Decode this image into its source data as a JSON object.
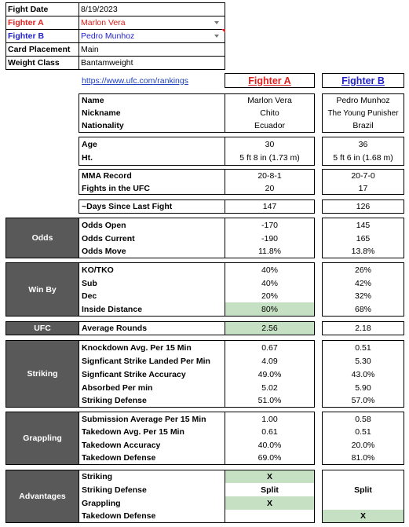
{
  "info": {
    "rows": [
      {
        "label": "Fight Date",
        "value": "8/19/2023",
        "style": ""
      },
      {
        "label": "Fighter A",
        "value": "Marlon Vera",
        "style": "red"
      },
      {
        "label": "Fighter B",
        "value": "Pedro Munhoz",
        "style": "blue"
      },
      {
        "label": "Card Placement",
        "value": "Main",
        "style": ""
      },
      {
        "label": "Weight Class",
        "value": "Bantamweight",
        "style": ""
      }
    ]
  },
  "link_text": "https://www.ufc.com/rankings",
  "headers": {
    "fighter_a": "Fighter A",
    "fighter_b": "Fighter B"
  },
  "profile": {
    "name_label": "Name",
    "name_a": "Marlon Vera",
    "name_b": "Pedro Munhoz",
    "nickname_label": "Nickname",
    "nickname_a": "Chito",
    "nickname_b": "The Young Punisher",
    "nationality_label": "Nationality",
    "nationality_a": "Ecuador",
    "nationality_b": "Brazil"
  },
  "body": {
    "age_label": "Age",
    "age_a": "30",
    "age_b": "36",
    "ht_label": "Ht.",
    "ht_a": "5 ft 8 in (1.73 m)",
    "ht_b": "5 ft 6 in (1.68 m)"
  },
  "record": {
    "mma_label": "MMA Record",
    "mma_a": "20-8-1",
    "mma_b": "20-7-0",
    "ufc_label": "Fights in the UFC",
    "ufc_a": "20",
    "ufc_b": "17"
  },
  "days": {
    "label": "~Days Since Last Fight",
    "a": "147",
    "b": "126"
  },
  "odds": {
    "section": "Odds",
    "open_label": "Odds Open",
    "open_a": "-170",
    "open_b": "145",
    "current_label": "Odds Current",
    "current_a": "-190",
    "current_b": "165",
    "move_label": "Odds Move",
    "move_a": "11.8%",
    "move_b": "13.8%"
  },
  "winby": {
    "section": "Win By",
    "ko_label": "KO/TKO",
    "ko_a": "40%",
    "ko_b": "26%",
    "sub_label": "Sub",
    "sub_a": "40%",
    "sub_b": "42%",
    "dec_label": "Dec",
    "dec_a": "20%",
    "dec_b": "32%",
    "inside_label": "Inside Distance",
    "inside_a": "80%",
    "inside_b": "68%"
  },
  "ufc": {
    "section": "UFC",
    "label": "Average Rounds",
    "a": "2.56",
    "b": "2.18"
  },
  "striking": {
    "section": "Striking",
    "kd_label": "Knockdown Avg. Per 15 Min",
    "kd_a": "0.67",
    "kd_b": "0.51",
    "slpm_label": "Signficant Strike Landed Per Min",
    "slpm_a": "4.09",
    "slpm_b": "5.30",
    "acc_label": "Signficant Strike Accuracy",
    "acc_a": "49.0%",
    "acc_b": "43.0%",
    "abs_label": "Absorbed Per min",
    "abs_a": "5.02",
    "abs_b": "5.90",
    "def_label": "Striking Defense",
    "def_a": "51.0%",
    "def_b": "57.0%"
  },
  "grappling": {
    "section": "Grappling",
    "sub_label": "Submission Average  Per 15 Min",
    "sub_a": "1.00",
    "sub_b": "0.58",
    "td_label": "Takedown Avg. Per 15 Min",
    "td_a": "0.61",
    "td_b": "0.51",
    "tdacc_label": "Takedown Accuracy",
    "tdacc_a": "40.0%",
    "tdacc_b": "20.0%",
    "tddef_label": "Takedown Defense",
    "tddef_a": "69.0%",
    "tddef_b": "81.0%"
  },
  "advantages": {
    "section": "Advantages",
    "striking_label": "Striking",
    "striking_a": "X",
    "striking_b": "",
    "sdef_label": "Striking Defense",
    "sdef_a": "Split",
    "sdef_b": "Split",
    "grappling_label": "Grappling",
    "grappling_a": "X",
    "grappling_b": "",
    "tddef_label": "Takedown Defense",
    "tddef_a": "",
    "tddef_b": "X"
  },
  "colors": {
    "fighter_a": "#e0201e",
    "fighter_b": "#2222cc",
    "section_bg": "#595959",
    "highlight": "#c6e0c4"
  }
}
